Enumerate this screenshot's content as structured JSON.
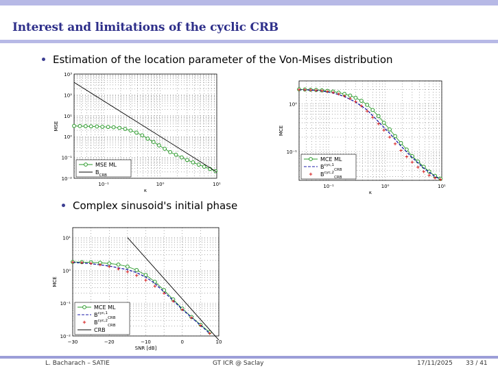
{
  "slide": {
    "title": "Interest and limitations of the cyclic CRB",
    "bullet1": "Estimation of the location parameter of the Von-Mises distribution",
    "bullet2": "Complex sinusoid's initial phase"
  },
  "footer": {
    "author": "L. Bacharach – SATIE",
    "event": "GT ICR @ Saclay",
    "date": "17/11/2025",
    "page": "33 / 41"
  },
  "colors": {
    "title": "#2e2f8a",
    "accent_bar": "#b7b9e6",
    "ml_marker": "#2a9a2a",
    "crb_line": "#000000",
    "cyc1_line": "#1a1aa8",
    "cyc2_marker": "#d42020"
  },
  "chart_data": [
    {
      "type": "line",
      "title": "",
      "xlabel": "κ",
      "ylabel": "MSE",
      "xscale": "log",
      "yscale": "log",
      "xlim": [
        0.03,
        10
      ],
      "ylim": [
        0.01,
        1000
      ],
      "grid": true,
      "legend_position": "bottom-left",
      "x_tick_labels": [
        "10⁻¹",
        "10⁰",
        "10¹"
      ],
      "y_tick_labels": [
        "10⁻²",
        "10⁻¹",
        "10⁰",
        "10¹",
        "10²",
        "10³"
      ],
      "series": [
        {
          "name": "MSE ML",
          "style": "green-circles",
          "x": [
            0.03,
            0.038,
            0.048,
            0.06,
            0.076,
            0.095,
            0.12,
            0.15,
            0.19,
            0.24,
            0.3,
            0.38,
            0.48,
            0.6,
            0.76,
            0.95,
            1.2,
            1.5,
            1.9,
            2.4,
            3.0,
            3.8,
            4.8,
            6.0,
            7.6,
            9.5
          ],
          "y": [
            3.25,
            3.2,
            3.15,
            3.1,
            3.05,
            2.95,
            2.9,
            2.8,
            2.6,
            2.35,
            1.95,
            1.55,
            1.15,
            0.8,
            0.55,
            0.38,
            0.26,
            0.18,
            0.135,
            0.1,
            0.075,
            0.058,
            0.045,
            0.036,
            0.028,
            0.022
          ]
        },
        {
          "name": "B_CRB",
          "style": "black-line",
          "x": [
            0.03,
            10
          ],
          "y": [
            400,
            0.02
          ]
        }
      ]
    },
    {
      "type": "line",
      "title": "",
      "xlabel": "κ",
      "ylabel": "MCE",
      "xscale": "log",
      "yscale": "log",
      "xlim": [
        0.03,
        10
      ],
      "ylim": [
        0.025,
        3
      ],
      "grid": true,
      "legend_position": "bottom-left",
      "x_tick_labels": [
        "10⁻¹",
        "10⁰",
        "10¹"
      ],
      "y_tick_labels": [
        "10⁻¹",
        "10⁰"
      ],
      "series": [
        {
          "name": "MCE ML",
          "style": "green-circles",
          "x": [
            0.03,
            0.038,
            0.048,
            0.06,
            0.076,
            0.095,
            0.12,
            0.15,
            0.19,
            0.24,
            0.3,
            0.38,
            0.48,
            0.6,
            0.76,
            0.95,
            1.2,
            1.5,
            1.9,
            2.4,
            3.0,
            3.8,
            4.8,
            6.0,
            7.6,
            9.5
          ],
          "y": [
            2.0,
            1.98,
            1.96,
            1.94,
            1.9,
            1.86,
            1.8,
            1.7,
            1.6,
            1.48,
            1.33,
            1.15,
            0.95,
            0.74,
            0.55,
            0.4,
            0.29,
            0.21,
            0.15,
            0.11,
            0.08,
            0.062,
            0.048,
            0.038,
            0.031,
            0.027
          ]
        },
        {
          "name": "B_CRB^{cyc,1}",
          "style": "blue-dashed",
          "x": [
            0.03,
            0.048,
            0.076,
            0.12,
            0.19,
            0.3,
            0.48,
            0.76,
            1.2,
            1.9,
            3.0,
            4.8,
            7.6,
            9.5
          ],
          "y": [
            1.97,
            1.93,
            1.85,
            1.68,
            1.42,
            1.08,
            0.74,
            0.42,
            0.24,
            0.13,
            0.075,
            0.045,
            0.03,
            0.026
          ]
        },
        {
          "name": "B_CRB^{cyc,2}",
          "style": "red-plus",
          "x": [
            0.03,
            0.038,
            0.048,
            0.06,
            0.076,
            0.095,
            0.12,
            0.15,
            0.19,
            0.24,
            0.3,
            0.38,
            0.48,
            0.6,
            0.76,
            0.95,
            1.2,
            1.5,
            1.9,
            2.4,
            3.0,
            3.8,
            4.8,
            6.0,
            7.6,
            9.5
          ],
          "y": [
            1.97,
            1.96,
            1.94,
            1.91,
            1.87,
            1.8,
            1.72,
            1.6,
            1.45,
            1.28,
            1.1,
            0.9,
            0.7,
            0.52,
            0.38,
            0.28,
            0.2,
            0.145,
            0.105,
            0.078,
            0.06,
            0.047,
            0.038,
            0.032,
            0.028,
            0.026
          ]
        }
      ]
    },
    {
      "type": "line",
      "title": "",
      "xlabel": "SNR [dB]",
      "ylabel": "MCE",
      "xscale": "linear",
      "yscale": "log",
      "xlim": [
        -30,
        10
      ],
      "ylim": [
        0.01,
        20
      ],
      "grid": true,
      "legend_position": "bottom-left",
      "x_tick_labels": [
        "−30",
        "−20",
        "−10",
        "0",
        "10"
      ],
      "y_tick_labels": [
        "10⁻²",
        "10⁻¹",
        "10⁰",
        "10¹"
      ],
      "series": [
        {
          "name": "MCE ML",
          "style": "green-circles",
          "x": [
            -30,
            -27.5,
            -25,
            -22.5,
            -20,
            -17.5,
            -15,
            -12.5,
            -10,
            -7.5,
            -5,
            -2.5,
            0,
            2.5,
            5,
            7.5
          ],
          "y": [
            1.8,
            1.78,
            1.75,
            1.7,
            1.62,
            1.5,
            1.3,
            1.02,
            0.72,
            0.45,
            0.25,
            0.13,
            0.068,
            0.038,
            0.022,
            0.013
          ]
        },
        {
          "name": "B_CRB^{cyc,1}",
          "style": "blue-dashed",
          "x": [
            -30,
            -25,
            -20,
            -15,
            -12.5,
            -10,
            -7.5,
            -5,
            -2.5,
            0,
            2.5,
            5,
            7.5
          ],
          "y": [
            1.75,
            1.6,
            1.35,
            1.05,
            0.85,
            0.62,
            0.4,
            0.22,
            0.12,
            0.065,
            0.037,
            0.021,
            0.012
          ]
        },
        {
          "name": "B_CRB^{cyc,2}",
          "style": "red-plus",
          "x": [
            -30,
            -27.5,
            -25,
            -22.5,
            -20,
            -17.5,
            -15,
            -12.5,
            -10,
            -7.5,
            -5,
            -2.5,
            0,
            2.5,
            5,
            7.5
          ],
          "y": [
            1.78,
            1.72,
            1.62,
            1.48,
            1.3,
            1.1,
            0.9,
            0.7,
            0.5,
            0.33,
            0.2,
            0.115,
            0.063,
            0.036,
            0.021,
            0.012
          ]
        },
        {
          "name": "CRB",
          "style": "black-line",
          "x": [
            -15,
            10
          ],
          "y": [
            10,
            0.0075
          ]
        }
      ]
    }
  ]
}
